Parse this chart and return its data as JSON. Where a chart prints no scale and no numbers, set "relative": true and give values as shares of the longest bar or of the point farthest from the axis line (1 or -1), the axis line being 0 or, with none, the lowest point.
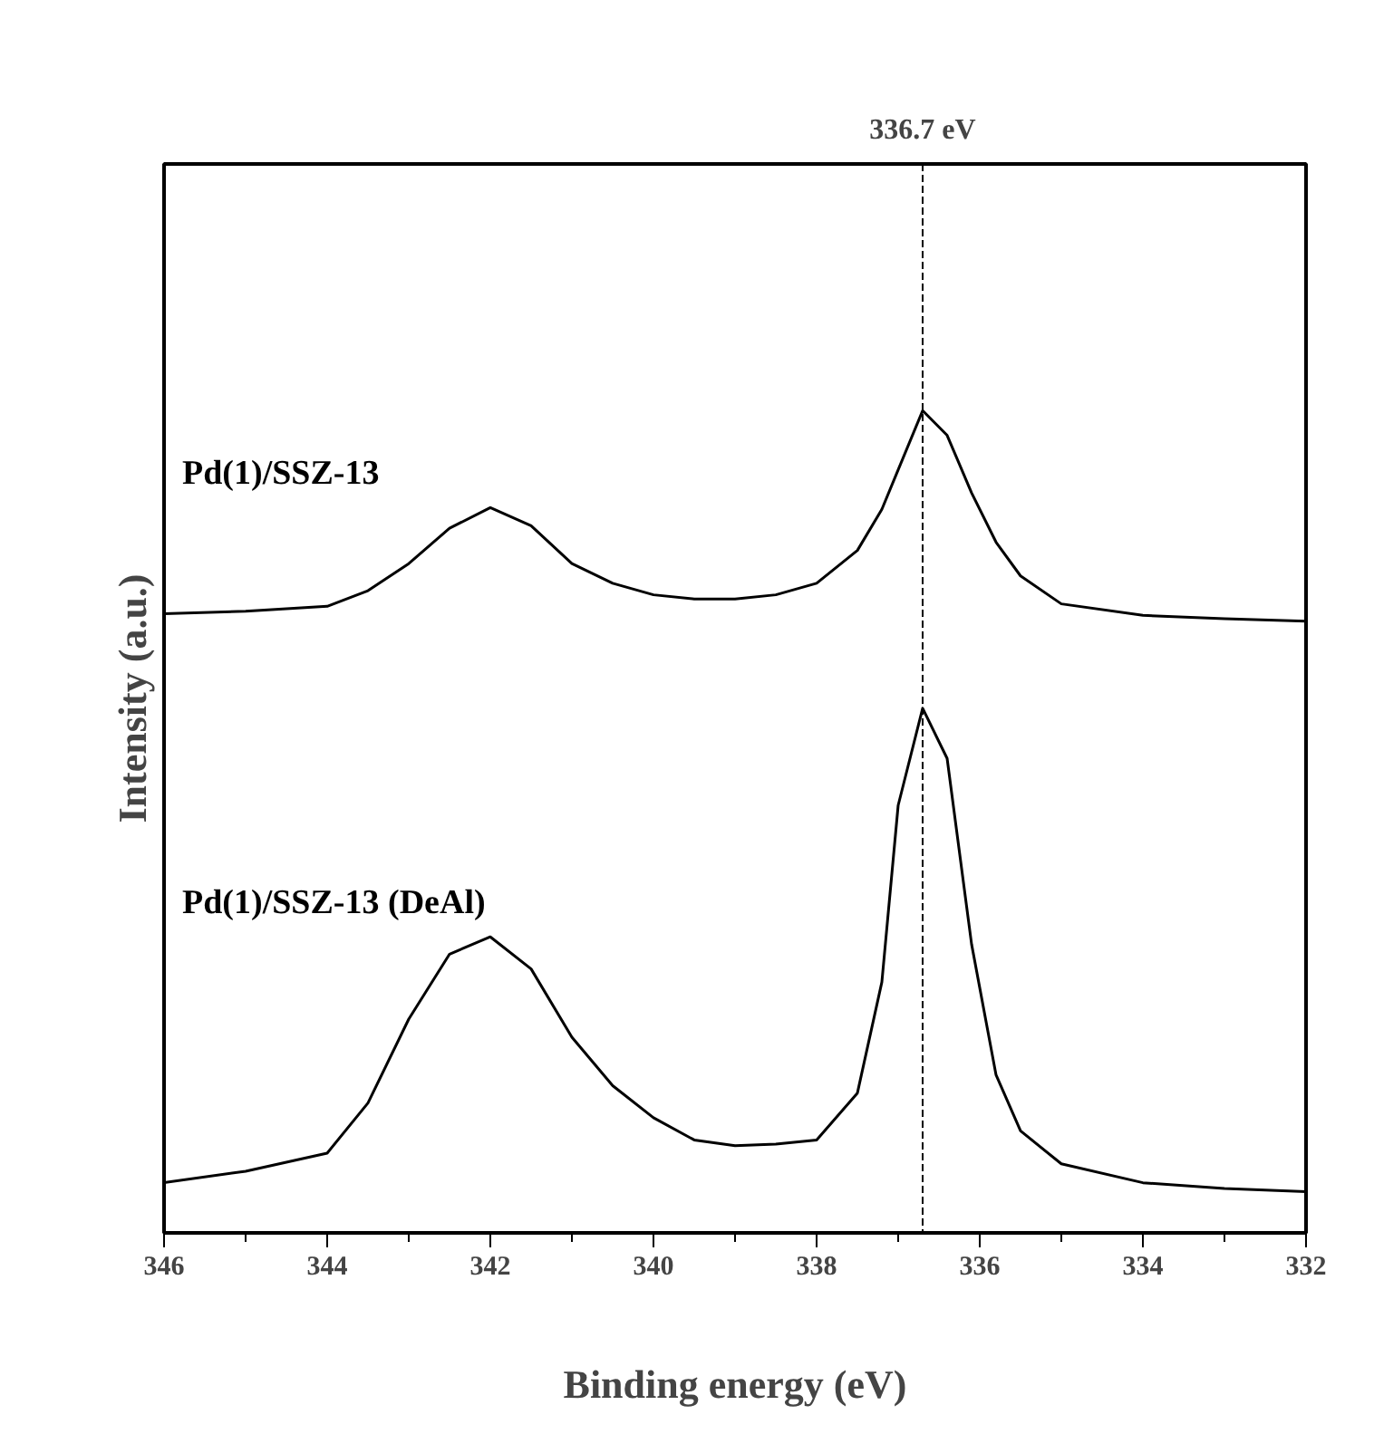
{
  "chart_data": {
    "type": "line",
    "relative": true,
    "xlabel": "Binding energy (eV)",
    "ylabel": "Intensity (a.u.)",
    "x": [
      346,
      345,
      344,
      343.5,
      343,
      342.5,
      342,
      341.5,
      341,
      340.5,
      340,
      339.5,
      339,
      338.5,
      338,
      337.5,
      337.2,
      337,
      336.7,
      336.4,
      336.1,
      335.8,
      335.5,
      335,
      334,
      333,
      332
    ],
    "xlim": [
      346,
      332
    ],
    "xticks": [
      346,
      344,
      342,
      340,
      338,
      336,
      334,
      332
    ],
    "series": [
      {
        "name": "Pd(1)/SSZ-13",
        "color": "#000000",
        "values": [
          0.753,
          0.756,
          0.762,
          0.781,
          0.814,
          0.857,
          0.882,
          0.86,
          0.814,
          0.79,
          0.776,
          0.771,
          0.771,
          0.776,
          0.79,
          0.83,
          0.88,
          0.928,
          1.0,
          0.97,
          0.9,
          0.84,
          0.799,
          0.765,
          0.751,
          0.747,
          0.744
        ]
      },
      {
        "name": "Pd(1)/SSZ-13 (DeAl)",
        "color": "#000000",
        "values": [
          0.061,
          0.075,
          0.097,
          0.158,
          0.26,
          0.339,
          0.36,
          0.321,
          0.238,
          0.179,
          0.14,
          0.113,
          0.106,
          0.108,
          0.113,
          0.17,
          0.305,
          0.52,
          0.638,
          0.577,
          0.351,
          0.192,
          0.124,
          0.084,
          0.061,
          0.054,
          0.05
        ]
      }
    ],
    "ref_lines": [
      {
        "axis": "x",
        "value": 336.7,
        "label": "336.7 eV",
        "color": "#000000",
        "line_style": "dashed"
      }
    ],
    "tick_labels": "x",
    "grid": false,
    "legend": false,
    "marker": "none",
    "line_style": "solid"
  }
}
